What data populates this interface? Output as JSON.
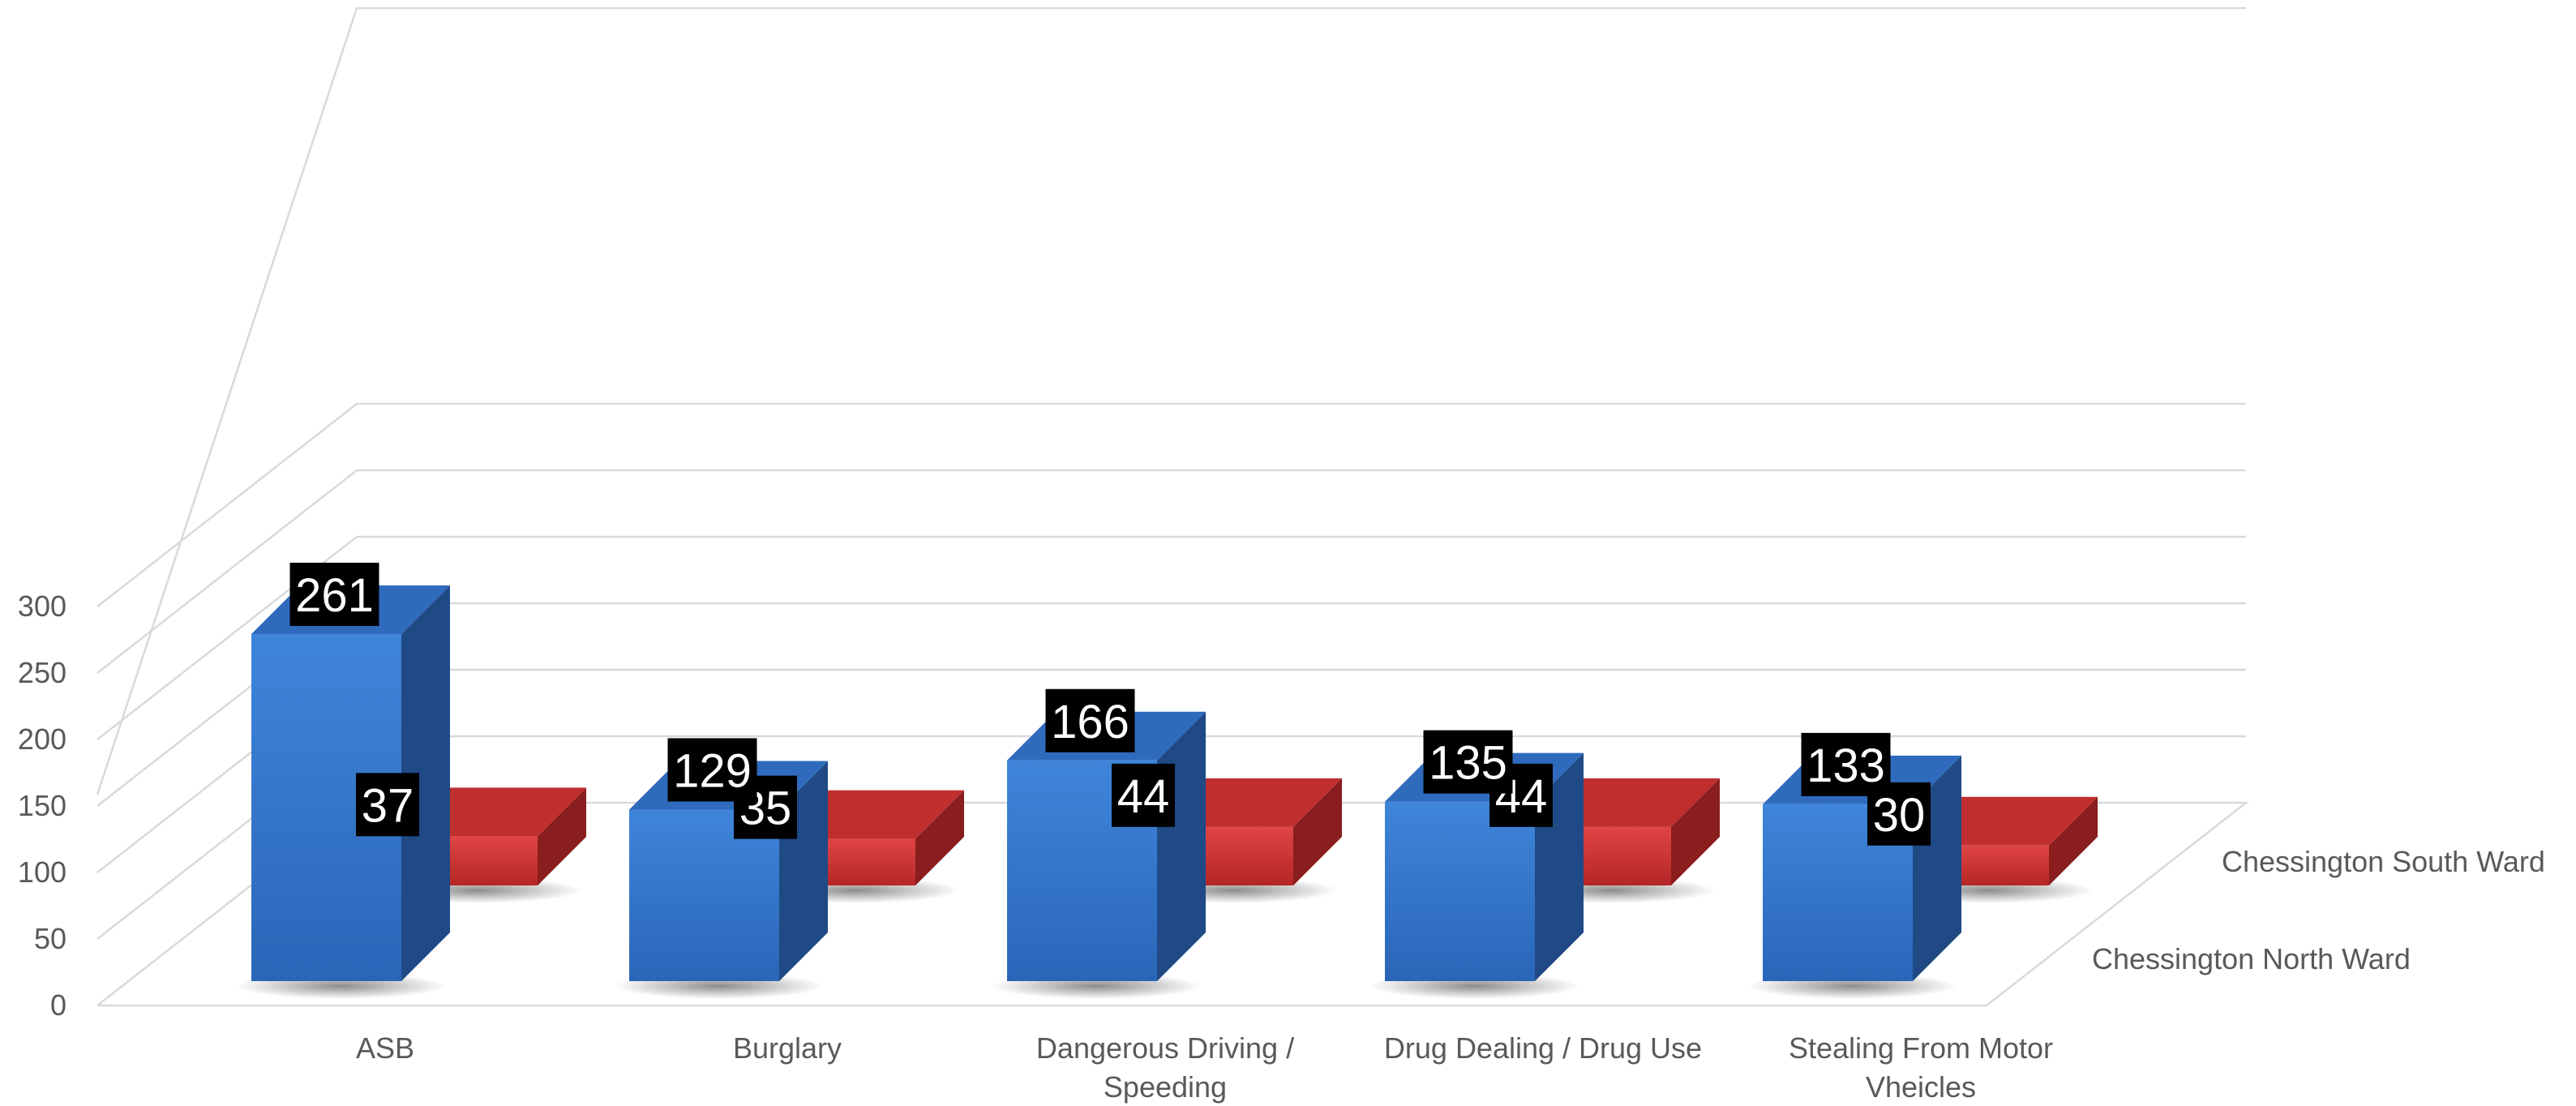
{
  "chart_data": {
    "type": "bar",
    "categories": [
      "ASB",
      "Burglary",
      "Dangerous Driving / Speeding",
      "Drug Dealing / Drug Use",
      "Stealing From Motor Vheicles"
    ],
    "category_lines": [
      [
        "ASB"
      ],
      [
        "Burglary"
      ],
      [
        "Dangerous Driving /",
        "Speeding"
      ],
      [
        "Drug Dealing / Drug Use"
      ],
      [
        "Stealing From Motor",
        "Vheicles"
      ]
    ],
    "series": [
      {
        "name": "Chessington North Ward",
        "values": [
          261,
          129,
          166,
          135,
          133
        ],
        "color": "#3b7fd4"
      },
      {
        "name": "Chessington South Ward",
        "values": [
          37,
          35,
          44,
          44,
          30
        ],
        "color": "#d63a3a"
      }
    ],
    "ylim": [
      0,
      300
    ],
    "yticks": [
      0,
      50,
      100,
      150,
      200,
      250,
      300
    ],
    "grid": true,
    "three_d": true,
    "data_label_background": "#000000"
  }
}
